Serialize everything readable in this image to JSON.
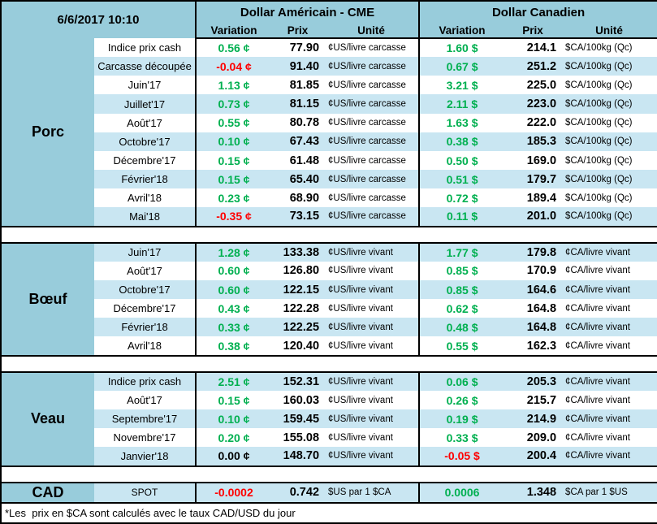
{
  "header": {
    "datetime": "6/6/2017 10:10",
    "usd_title": "Dollar Américain - CME",
    "cad_title": "Dollar Canadien",
    "subheaders": [
      "Variation",
      "Prix",
      "Unité"
    ]
  },
  "colors": {
    "accent_teal": "#98CCDB",
    "stripe_blue": "#C9E6F2",
    "positive_green": "#00B050",
    "negative_red": "#FF0000"
  },
  "sections": [
    {
      "name": "Porc",
      "stripe_start": "white",
      "rows": [
        {
          "label": "Indice prix cash",
          "us_variation": "0.56 ¢",
          "us_trend": "pos",
          "us_prix": "77.90",
          "us_unit": "¢US/livre carcasse",
          "ca_variation": "1.60 $",
          "ca_trend": "pos",
          "ca_prix": "214.1",
          "ca_unit": "$CA/100kg (Qc)"
        },
        {
          "label": "Carcasse découpée",
          "us_variation": "-0.04 ¢",
          "us_trend": "neg",
          "us_prix": "91.40",
          "us_unit": "¢US/livre carcasse",
          "ca_variation": "0.67 $",
          "ca_trend": "pos",
          "ca_prix": "251.2",
          "ca_unit": "$CA/100kg (Qc)"
        },
        {
          "label": "Juin'17",
          "us_variation": "1.13 ¢",
          "us_trend": "pos",
          "us_prix": "81.85",
          "us_unit": "¢US/livre carcasse",
          "ca_variation": "3.21 $",
          "ca_trend": "pos",
          "ca_prix": "225.0",
          "ca_unit": "$CA/100kg (Qc)"
        },
        {
          "label": "Juillet'17",
          "us_variation": "0.73 ¢",
          "us_trend": "pos",
          "us_prix": "81.15",
          "us_unit": "¢US/livre carcasse",
          "ca_variation": "2.11 $",
          "ca_trend": "pos",
          "ca_prix": "223.0",
          "ca_unit": "$CA/100kg (Qc)"
        },
        {
          "label": "Août'17",
          "us_variation": "0.55 ¢",
          "us_trend": "pos",
          "us_prix": "80.78",
          "us_unit": "¢US/livre carcasse",
          "ca_variation": "1.63 $",
          "ca_trend": "pos",
          "ca_prix": "222.0",
          "ca_unit": "$CA/100kg (Qc)"
        },
        {
          "label": "Octobre'17",
          "us_variation": "0.10 ¢",
          "us_trend": "pos",
          "us_prix": "67.43",
          "us_unit": "¢US/livre carcasse",
          "ca_variation": "0.38 $",
          "ca_trend": "pos",
          "ca_prix": "185.3",
          "ca_unit": "$CA/100kg (Qc)"
        },
        {
          "label": "Décembre'17",
          "us_variation": "0.15 ¢",
          "us_trend": "pos",
          "us_prix": "61.48",
          "us_unit": "¢US/livre carcasse",
          "ca_variation": "0.50 $",
          "ca_trend": "pos",
          "ca_prix": "169.0",
          "ca_unit": "$CA/100kg (Qc)"
        },
        {
          "label": "Février'18",
          "us_variation": "0.15 ¢",
          "us_trend": "pos",
          "us_prix": "65.40",
          "us_unit": "¢US/livre carcasse",
          "ca_variation": "0.51 $",
          "ca_trend": "pos",
          "ca_prix": "179.7",
          "ca_unit": "$CA/100kg (Qc)"
        },
        {
          "label": "Avril'18",
          "us_variation": "0.23 ¢",
          "us_trend": "pos",
          "us_prix": "68.90",
          "us_unit": "¢US/livre carcasse",
          "ca_variation": "0.72 $",
          "ca_trend": "pos",
          "ca_prix": "189.4",
          "ca_unit": "$CA/100kg (Qc)"
        },
        {
          "label": "Mai'18",
          "us_variation": "-0.35 ¢",
          "us_trend": "neg",
          "us_prix": "73.15",
          "us_unit": "¢US/livre carcasse",
          "ca_variation": "0.11 $",
          "ca_trend": "pos",
          "ca_prix": "201.0",
          "ca_unit": "$CA/100kg (Qc)"
        }
      ]
    },
    {
      "name": "Bœuf",
      "stripe_start": "blue",
      "rows": [
        {
          "label": "Juin'17",
          "us_variation": "1.28 ¢",
          "us_trend": "pos",
          "us_prix": "133.38",
          "us_unit": "¢US/livre vivant",
          "ca_variation": "1.77 $",
          "ca_trend": "pos",
          "ca_prix": "179.8",
          "ca_unit": "¢CA/livre vivant"
        },
        {
          "label": "Août'17",
          "us_variation": "0.60 ¢",
          "us_trend": "pos",
          "us_prix": "126.80",
          "us_unit": "¢US/livre vivant",
          "ca_variation": "0.85 $",
          "ca_trend": "pos",
          "ca_prix": "170.9",
          "ca_unit": "¢CA/livre vivant"
        },
        {
          "label": "Octobre'17",
          "us_variation": "0.60 ¢",
          "us_trend": "pos",
          "us_prix": "122.15",
          "us_unit": "¢US/livre vivant",
          "ca_variation": "0.85 $",
          "ca_trend": "pos",
          "ca_prix": "164.6",
          "ca_unit": "¢CA/livre vivant"
        },
        {
          "label": "Décembre'17",
          "us_variation": "0.43 ¢",
          "us_trend": "pos",
          "us_prix": "122.28",
          "us_unit": "¢US/livre vivant",
          "ca_variation": "0.62 $",
          "ca_trend": "pos",
          "ca_prix": "164.8",
          "ca_unit": "¢CA/livre vivant"
        },
        {
          "label": "Février'18",
          "us_variation": "0.33 ¢",
          "us_trend": "pos",
          "us_prix": "122.25",
          "us_unit": "¢US/livre vivant",
          "ca_variation": "0.48 $",
          "ca_trend": "pos",
          "ca_prix": "164.8",
          "ca_unit": "¢CA/livre vivant"
        },
        {
          "label": "Avril'18",
          "us_variation": "0.38 ¢",
          "us_trend": "pos",
          "us_prix": "120.40",
          "us_unit": "¢US/livre vivant",
          "ca_variation": "0.55 $",
          "ca_trend": "pos",
          "ca_prix": "162.3",
          "ca_unit": "¢CA/livre vivant"
        }
      ]
    },
    {
      "name": "Veau",
      "stripe_start": "blue",
      "rows": [
        {
          "label": "Indice prix cash",
          "us_variation": "2.51 ¢",
          "us_trend": "pos",
          "us_prix": "152.31",
          "us_unit": "¢US/livre vivant",
          "ca_variation": "0.06 $",
          "ca_trend": "pos",
          "ca_prix": "205.3",
          "ca_unit": "¢CA/livre vivant"
        },
        {
          "label": "Août'17",
          "us_variation": "0.15 ¢",
          "us_trend": "pos",
          "us_prix": "160.03",
          "us_unit": "¢US/livre vivant",
          "ca_variation": "0.26 $",
          "ca_trend": "pos",
          "ca_prix": "215.7",
          "ca_unit": "¢CA/livre vivant"
        },
        {
          "label": "Septembre'17",
          "us_variation": "0.10 ¢",
          "us_trend": "pos",
          "us_prix": "159.45",
          "us_unit": "¢US/livre vivant",
          "ca_variation": "0.19 $",
          "ca_trend": "pos",
          "ca_prix": "214.9",
          "ca_unit": "¢CA/livre vivant"
        },
        {
          "label": "Novembre'17",
          "us_variation": "0.20 ¢",
          "us_trend": "pos",
          "us_prix": "155.08",
          "us_unit": "¢US/livre vivant",
          "ca_variation": "0.33 $",
          "ca_trend": "pos",
          "ca_prix": "209.0",
          "ca_unit": "¢CA/livre vivant"
        },
        {
          "label": "Janvier'18",
          "us_variation": "0.00 ¢",
          "us_trend": "flat",
          "us_prix": "148.70",
          "us_unit": "¢US/livre vivant",
          "ca_variation": "-0.05 $",
          "ca_trend": "neg",
          "ca_prix": "200.4",
          "ca_unit": "¢CA/livre vivant"
        }
      ]
    }
  ],
  "cad": {
    "name": "CAD",
    "label": "SPOT",
    "us_variation": "-0.0002",
    "us_trend": "neg",
    "us_prix": "0.742",
    "us_unit": "$US par 1 $CA",
    "ca_variation": "0.0006",
    "ca_trend": "pos",
    "ca_prix": "1.348",
    "ca_unit": "$CA par 1 $US"
  },
  "footnote": "*Les  prix en $CA sont calculés avec le taux CAD/USD du jour"
}
